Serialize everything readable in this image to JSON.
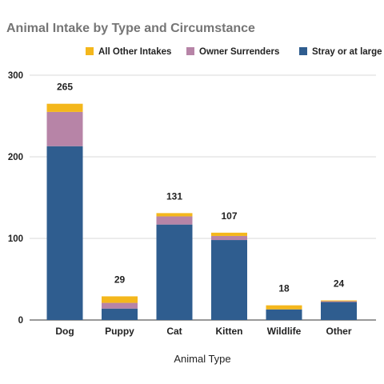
{
  "chart_data": {
    "type": "bar",
    "stacked": true,
    "title": "Animal Intake by Type and Circumstance",
    "xlabel": "Animal Type",
    "ylabel": "",
    "ylim": [
      0,
      300
    ],
    "yticks": [
      0,
      100,
      200,
      300
    ],
    "grid": true,
    "legend_position": "top",
    "categories": [
      "Dog",
      "Puppy",
      "Cat",
      "Kitten",
      "Wildlife",
      "Other"
    ],
    "series": [
      {
        "name": "Stray or at large",
        "color": "#2f5d8f",
        "values": [
          213,
          14,
          117,
          98,
          13,
          22
        ]
      },
      {
        "name": "Owner Surrenders",
        "color": "#b784a7",
        "values": [
          42,
          7,
          10,
          5,
          0,
          1
        ]
      },
      {
        "name": "All Other Intakes",
        "color": "#f4b71c",
        "values": [
          10,
          8,
          4,
          4,
          5,
          1
        ]
      }
    ],
    "totals": [
      265,
      29,
      131,
      107,
      18,
      24
    ],
    "legend_order": [
      "All Other Intakes",
      "Owner Surrenders",
      "Stray or at large"
    ]
  }
}
